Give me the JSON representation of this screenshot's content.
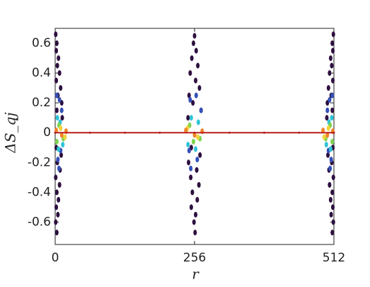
{
  "chart_data": {
    "type": "scatter",
    "x_label": "r",
    "y_label": "ΔS_qj",
    "xlim": [
      0,
      512
    ],
    "xticks": [
      0,
      256,
      512
    ],
    "ylim": [
      -0.75,
      0.7
    ],
    "yticks": [
      -0.6,
      -0.4,
      -0.2,
      0,
      0.2,
      0.4,
      0.6
    ],
    "grid": false,
    "series": [
      {
        "color": "#2d0f3f",
        "x": [
          256,
          254,
          259,
          251,
          262,
          248,
          258,
          265,
          246,
          253,
          268,
          244,
          250,
          266,
          245,
          260,
          249,
          264,
          252,
          261,
          250,
          258,
          255,
          257,
          1,
          3,
          2,
          6,
          4,
          8,
          2,
          10,
          5,
          12,
          3,
          13,
          2,
          11,
          4,
          9,
          1,
          8,
          3,
          6,
          2,
          5,
          1,
          3,
          511,
          509,
          510,
          506,
          508,
          504,
          510,
          502,
          507,
          500,
          509,
          499,
          510,
          501,
          508,
          503,
          511,
          504,
          509,
          506,
          510,
          507,
          511,
          509
        ],
        "y": [
          0.65,
          0.6,
          0.55,
          0.5,
          0.45,
          0.4,
          0.35,
          0.3,
          0.25,
          0.2,
          0.15,
          0.1,
          -0.1,
          -0.15,
          -0.2,
          -0.25,
          -0.3,
          -0.35,
          -0.4,
          -0.45,
          -0.5,
          -0.55,
          -0.6,
          -0.67,
          0.66,
          0.6,
          0.55,
          0.5,
          0.45,
          0.4,
          0.35,
          0.3,
          0.25,
          0.2,
          0.15,
          0.1,
          -0.1,
          -0.15,
          -0.2,
          -0.25,
          -0.3,
          -0.35,
          -0.4,
          -0.45,
          -0.5,
          -0.55,
          -0.6,
          -0.67,
          0.66,
          0.6,
          0.55,
          0.5,
          0.45,
          0.4,
          0.35,
          0.3,
          0.25,
          0.2,
          0.15,
          0.1,
          -0.1,
          -0.15,
          -0.2,
          -0.25,
          -0.3,
          -0.35,
          -0.4,
          -0.45,
          -0.5,
          -0.55,
          -0.6,
          -0.67
        ]
      },
      {
        "color": "#3450b8",
        "x": [
          8,
          12,
          5,
          10,
          3,
          7,
          248,
          268,
          261,
          246,
          259,
          249,
          504,
          500,
          507,
          502,
          509,
          505
        ],
        "y": [
          0.22,
          0.15,
          -0.18,
          -0.12,
          0.25,
          -0.24,
          0.22,
          0.15,
          -0.18,
          -0.12,
          0.25,
          -0.24,
          0.22,
          0.15,
          -0.18,
          -0.12,
          0.25,
          -0.24
        ]
      },
      {
        "color": "#2fc4d6",
        "x": [
          4,
          9,
          14,
          6,
          250,
          263,
          244,
          258,
          508,
          503,
          498,
          506
        ],
        "y": [
          0.1,
          0.07,
          -0.08,
          -0.11,
          0.1,
          0.07,
          -0.08,
          -0.11,
          0.1,
          0.07,
          -0.08,
          -0.11
        ]
      },
      {
        "color": "#7fd34e",
        "x": [
          7,
          15,
          3,
          247,
          266,
          254,
          505,
          497,
          509
        ],
        "y": [
          0.05,
          -0.04,
          -0.06,
          0.05,
          -0.04,
          -0.06,
          0.05,
          -0.04,
          -0.06
        ]
      },
      {
        "color": "#f2d23c",
        "x": [
          10,
          18,
          243,
          262,
          502,
          494
        ],
        "y": [
          0.03,
          -0.03,
          0.03,
          -0.03,
          0.03,
          -0.03
        ]
      },
      {
        "color": "#f0842a",
        "x": [
          2,
          12,
          20,
          240,
          256,
          270,
          492,
          500,
          510
        ],
        "y": [
          0.015,
          -0.015,
          0.01,
          0.015,
          -0.015,
          0.01,
          0.015,
          -0.015,
          0.01
        ]
      },
      {
        "color": "#b81e1a",
        "line": true,
        "x": [
          0,
          64,
          128,
          192,
          256,
          320,
          384,
          448,
          512
        ],
        "y": [
          0,
          0,
          0,
          0,
          0,
          0,
          0,
          0,
          0
        ]
      }
    ]
  }
}
